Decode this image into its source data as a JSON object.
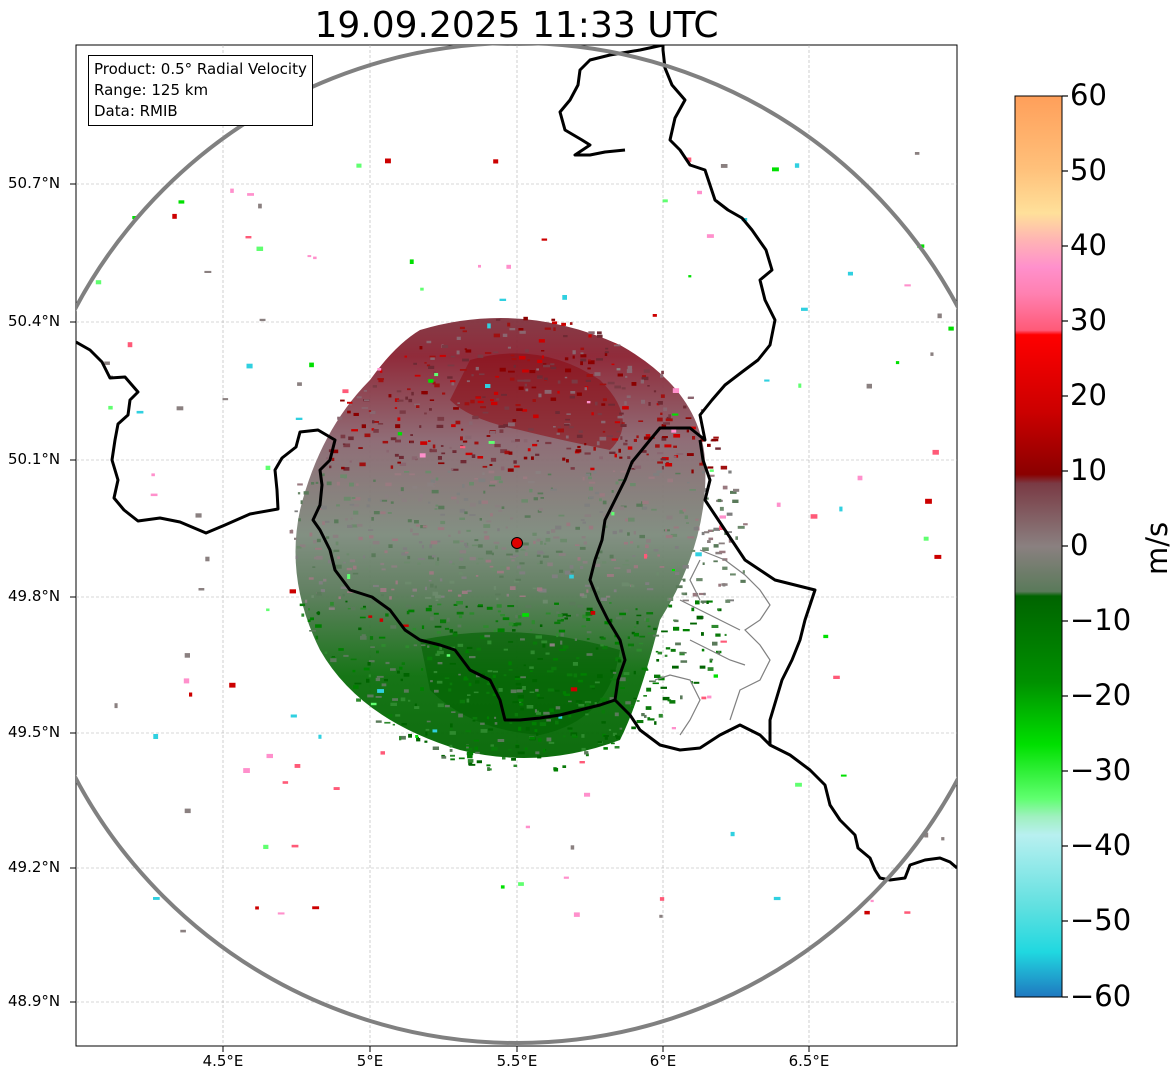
{
  "title": "19.09.2025 11:33 UTC",
  "info_box": {
    "product": "Product: 0.5° Radial Velocity",
    "range": "Range: 125 km",
    "data": "Data: RMIB"
  },
  "axes": {
    "lat_ticks": [
      "50.7°N",
      "50.4°N",
      "50.1°N",
      "49.8°N",
      "49.5°N",
      "49.2°N",
      "48.9°N"
    ],
    "lon_ticks": [
      "4.5°E",
      "5°E",
      "5.5°E",
      "6°E",
      "6.5°E"
    ]
  },
  "colorbar": {
    "unit": "m/s",
    "labels": [
      "60",
      "50",
      "40",
      "30",
      "20",
      "10",
      "0",
      "−10",
      "−20",
      "−30",
      "−40",
      "−50",
      "−60"
    ],
    "range": [
      -60,
      60
    ]
  },
  "colors": {
    "outbound": "#8a0000",
    "near_zero": "#7f7f7f",
    "inbound": "#006400",
    "border": "#000000",
    "range_ring": "#808080"
  },
  "radar_site": {
    "lat": 49.92,
    "lon": 5.5
  }
}
